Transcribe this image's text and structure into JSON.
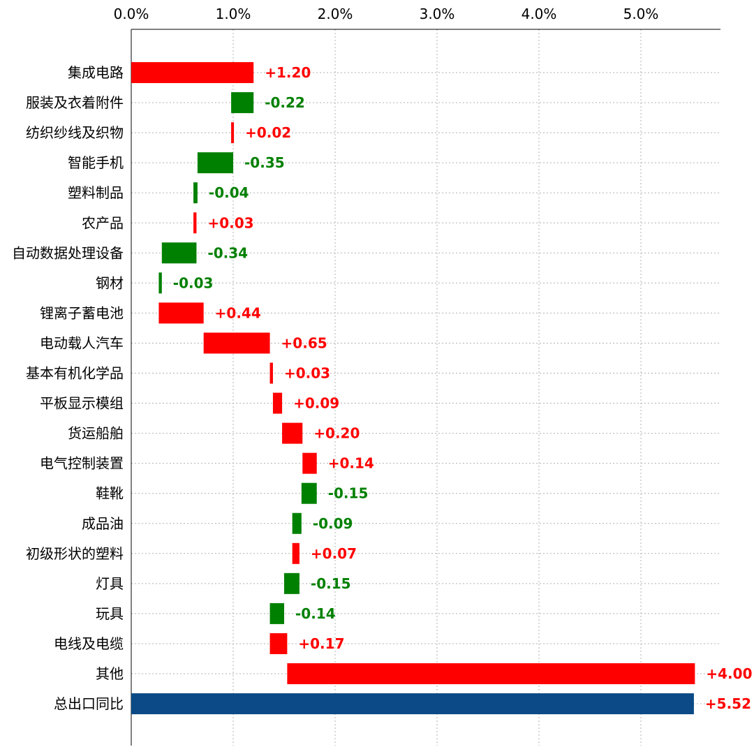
{
  "chart_data": {
    "type": "bar",
    "subtype": "waterfall-horizontal",
    "title": "",
    "xlabel": "",
    "ylabel": "",
    "xlim": [
      0,
      5.8
    ],
    "x_ticks": [
      0,
      1,
      2,
      3,
      4,
      5
    ],
    "x_tick_labels": [
      "0.0%",
      "1.0%",
      "2.0%",
      "3.0%",
      "4.0%",
      "5.0%"
    ],
    "x_axis_position": "top",
    "grid": true,
    "categories": [
      "集成电路",
      "服装及衣着附件",
      "纺织纱线及织物",
      "智能手机",
      "塑料制品",
      "农产品",
      "自动数据处理设备",
      "钢材",
      "锂离子蓄电池",
      "电动载人汽车",
      "基本有机化学品",
      "平板显示模组",
      "货运船舶",
      "电气控制装置",
      "鞋靴",
      "成品油",
      "初级形状的塑料",
      "灯具",
      "玩具",
      "电线及电缆",
      "其他",
      "总出口同比"
    ],
    "values": [
      1.2,
      -0.22,
      0.02,
      -0.35,
      -0.04,
      0.03,
      -0.34,
      -0.03,
      0.44,
      0.65,
      0.03,
      0.09,
      0.2,
      0.14,
      -0.15,
      -0.09,
      0.07,
      -0.15,
      -0.14,
      0.17,
      4.0,
      5.52
    ],
    "value_labels": [
      "+1.20",
      "-0.22",
      "+0.02",
      "-0.35",
      "-0.04",
      "+0.03",
      "-0.34",
      "-0.03",
      "+0.44",
      "+0.65",
      "+0.03",
      "+0.09",
      "+0.20",
      "+0.14",
      "-0.15",
      "-0.09",
      "+0.07",
      "-0.15",
      "-0.14",
      "+0.17",
      "+4.00",
      "+5.52"
    ],
    "total_index": 21,
    "colors": {
      "positive": "#ff0000",
      "negative": "#008000",
      "total": "#0b4a86",
      "grid": "#b0b0b0",
      "axis": "#000000"
    }
  }
}
